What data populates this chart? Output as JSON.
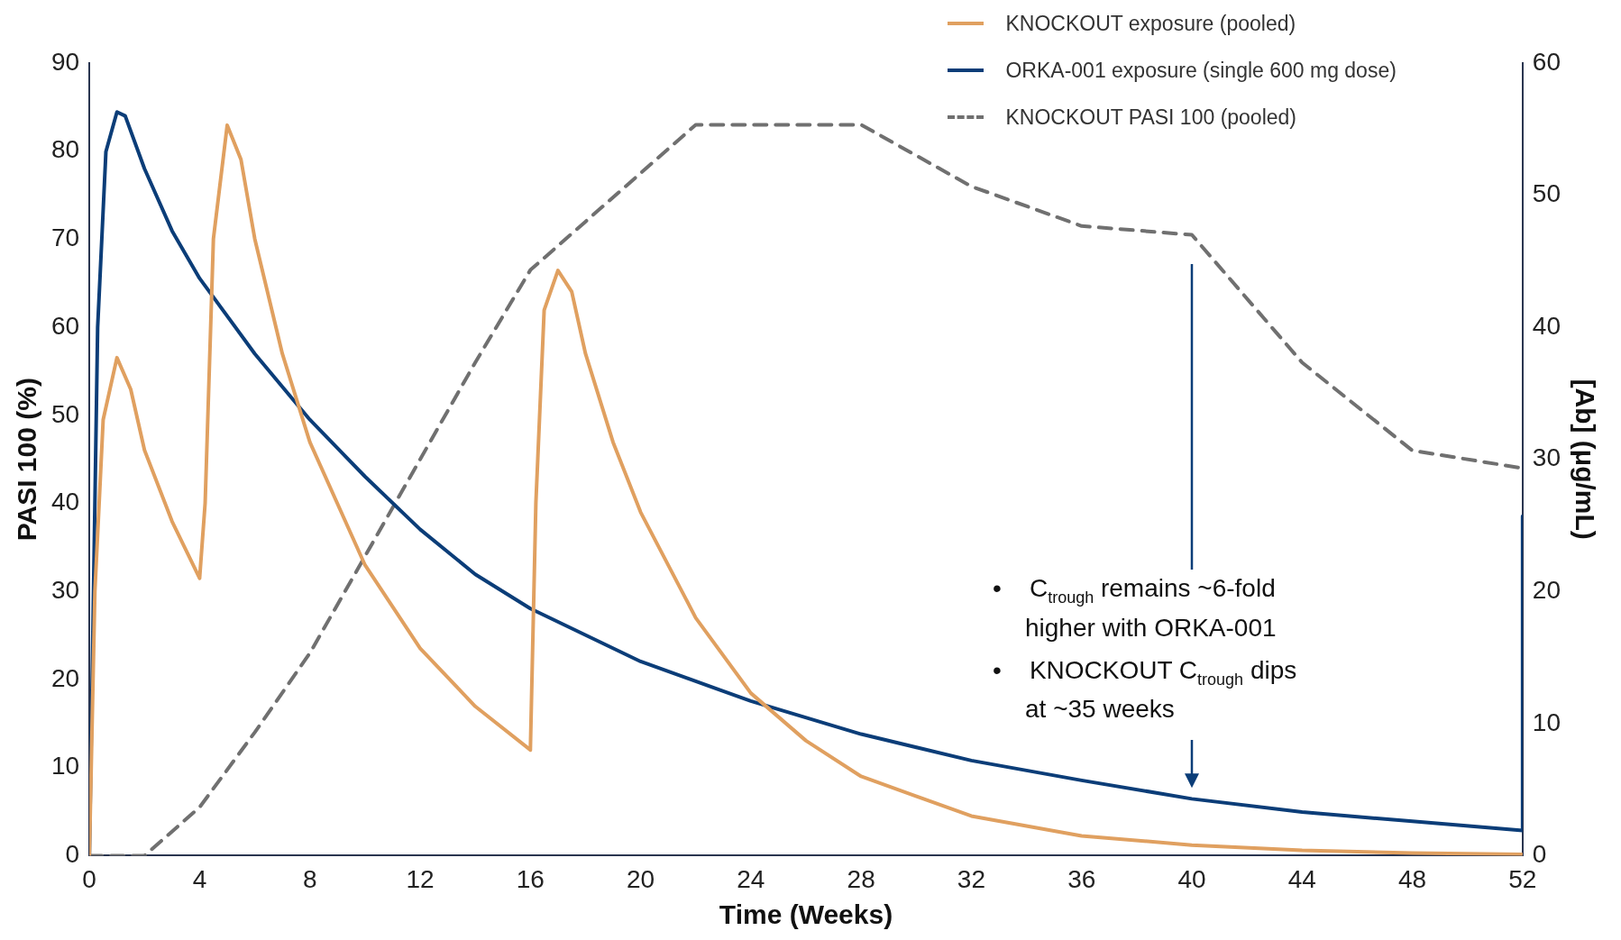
{
  "chart_data": {
    "type": "line",
    "xlabel": "Time (Weeks)",
    "ylabel": "PASI 100 (%)",
    "y2label": "[Ab] (μg/mL)",
    "xlim": [
      0,
      52
    ],
    "xticks": [
      0,
      4,
      8,
      12,
      16,
      20,
      24,
      28,
      32,
      36,
      40,
      44,
      48,
      52
    ],
    "ylim": [
      0,
      90
    ],
    "yticks": [
      0,
      10,
      20,
      30,
      40,
      50,
      60,
      70,
      80,
      90
    ],
    "y2lim": [
      0,
      60
    ],
    "y2ticks": [
      0,
      10,
      20,
      30,
      40,
      50,
      60
    ],
    "grid": false,
    "legend": "top right",
    "marker": "none",
    "series": [
      {
        "name": "KNOCKOUT exposure (pooled)",
        "color": "#e0a060",
        "axis": "y2",
        "line_style": "solid",
        "x": [
          0,
          0.2,
          0.5,
          1,
          1.5,
          2,
          3,
          4,
          4.2,
          4.5,
          5,
          5.5,
          6,
          7,
          8,
          10,
          12,
          14,
          16,
          16.2,
          16.5,
          17,
          17.5,
          18,
          19,
          20,
          22,
          24,
          26,
          28,
          32,
          36,
          40,
          44,
          48,
          52
        ],
        "values": [
          0,
          20,
          33,
          37.7,
          35.3,
          30.7,
          25.3,
          21,
          26.7,
          46.7,
          55.3,
          52.7,
          46.7,
          38,
          31.3,
          22,
          15.7,
          11.3,
          8,
          26.7,
          41.3,
          44.3,
          42.7,
          38,
          31.3,
          26,
          18,
          12.3,
          8.7,
          6,
          3,
          1.5,
          0.8,
          0.4,
          0.2,
          0.1
        ]
      },
      {
        "name": "ORKA-001 exposure (single 600 mg dose)",
        "color": "#0b3d78",
        "axis": "y2",
        "line_style": "solid",
        "x": [
          0,
          0.3,
          0.6,
          1,
          1.3,
          2,
          3,
          4,
          6,
          8,
          10,
          12,
          14,
          16,
          20,
          24,
          28,
          32,
          36,
          40,
          44,
          48,
          52,
          52
        ],
        "values": [
          0,
          40,
          53.3,
          56.3,
          56,
          52,
          47.3,
          43.7,
          38,
          33,
          28.7,
          24.7,
          21.3,
          18.7,
          14.7,
          11.7,
          9.2,
          7.2,
          5.7,
          4.3,
          3.3,
          2.6,
          1.9,
          25.7
        ]
      },
      {
        "name": "KNOCKOUT PASI 100 (pooled)",
        "color": "#707070",
        "axis": "y",
        "line_style": "dashed",
        "x": [
          0,
          2,
          4,
          6,
          8,
          10,
          12,
          14,
          16,
          18,
          20,
          22,
          24,
          28,
          32,
          36,
          40,
          44,
          48,
          52
        ],
        "values": [
          0,
          0,
          5.5,
          14,
          23,
          34,
          45,
          56,
          66.5,
          72,
          77.5,
          83,
          83,
          83,
          76,
          71.5,
          70.5,
          56,
          46,
          44
        ]
      }
    ],
    "annotations": [
      "• C$_{trough}$ remains ~6-fold higher with ORKA-001",
      "• KNOCKOUT C$_{trough}$ dips at ~35 weeks"
    ]
  }
}
